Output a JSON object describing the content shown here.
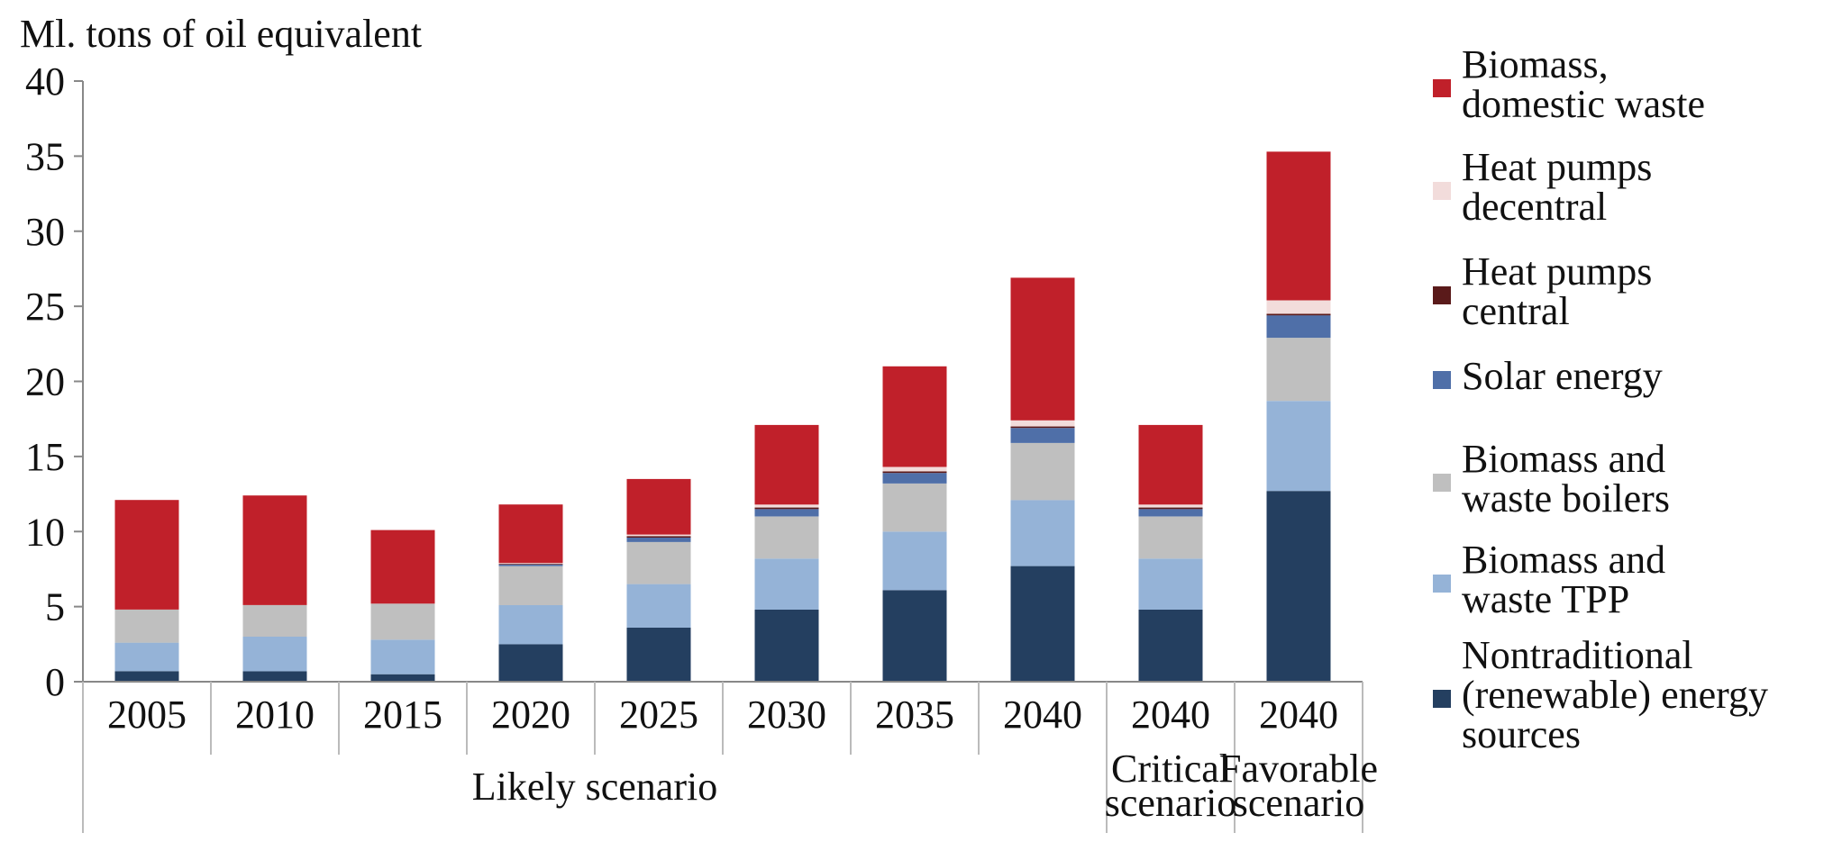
{
  "chart_data": {
    "type": "bar",
    "stacked": true,
    "title": "",
    "ylabel": "Ml. tons of oil equivalent",
    "xlabel": "",
    "ylim": [
      0,
      40
    ],
    "yticks": [
      0,
      5,
      10,
      15,
      20,
      25,
      30,
      35,
      40
    ],
    "categories": [
      "2005",
      "2010",
      "2015",
      "2020",
      "2025",
      "2030",
      "2035",
      "2040",
      "2040",
      "2040"
    ],
    "groups": [
      {
        "label": "Likely scenario",
        "start": 0,
        "end": 7
      },
      {
        "label_lines": [
          "Critical",
          "scenario"
        ],
        "start": 8,
        "end": 8
      },
      {
        "label_lines": [
          "Favorable",
          "scenario"
        ],
        "start": 9,
        "end": 9
      }
    ],
    "series": [
      {
        "name": "Nontraditional (renewable) energy sources",
        "legend_lines": [
          "Nontraditional",
          "(renewable) energy",
          "sources"
        ],
        "color": "#243f60",
        "values": [
          0.7,
          0.7,
          0.5,
          2.5,
          3.6,
          4.8,
          6.1,
          7.7,
          4.8,
          12.7
        ]
      },
      {
        "name": "Biomass and waste TPP",
        "legend_lines": [
          "Biomass and",
          "waste TPP"
        ],
        "color": "#95b3d7",
        "values": [
          1.9,
          2.3,
          2.3,
          2.6,
          2.9,
          3.4,
          3.9,
          4.4,
          3.4,
          6.0
        ]
      },
      {
        "name": "Biomass and waste boilers",
        "legend_lines": [
          "Biomass and",
          "waste boilers"
        ],
        "color": "#bfbfbf",
        "values": [
          2.2,
          2.1,
          2.4,
          2.6,
          2.8,
          2.8,
          3.2,
          3.8,
          2.8,
          4.2
        ]
      },
      {
        "name": "Solar energy",
        "legend_lines": [
          "Solar energy"
        ],
        "color": "#4f6fa8",
        "values": [
          0,
          0,
          0,
          0.1,
          0.3,
          0.5,
          0.7,
          1.0,
          0.5,
          1.5
        ]
      },
      {
        "name": "Heat pumps central",
        "legend_lines": [
          "Heat pumps",
          "central"
        ],
        "color": "#5a1a1a",
        "values": [
          0,
          0,
          0,
          0.05,
          0.1,
          0.1,
          0.1,
          0.1,
          0.1,
          0.1
        ]
      },
      {
        "name": "Heat pumps decentral",
        "legend_lines": [
          "Heat pumps",
          "decentral"
        ],
        "color": "#f2dcdb",
        "values": [
          0,
          0,
          0,
          0.05,
          0.1,
          0.2,
          0.3,
          0.4,
          0.2,
          0.9
        ]
      },
      {
        "name": "Biomass, domestic waste",
        "legend_lines": [
          "Biomass,",
          "domestic waste"
        ],
        "color": "#c0202a",
        "values": [
          7.3,
          7.3,
          4.9,
          3.9,
          3.7,
          5.3,
          6.7,
          9.5,
          5.3,
          9.9
        ]
      }
    ],
    "legend_order": [
      6,
      5,
      4,
      3,
      2,
      1,
      0
    ],
    "legend_position": "right"
  }
}
